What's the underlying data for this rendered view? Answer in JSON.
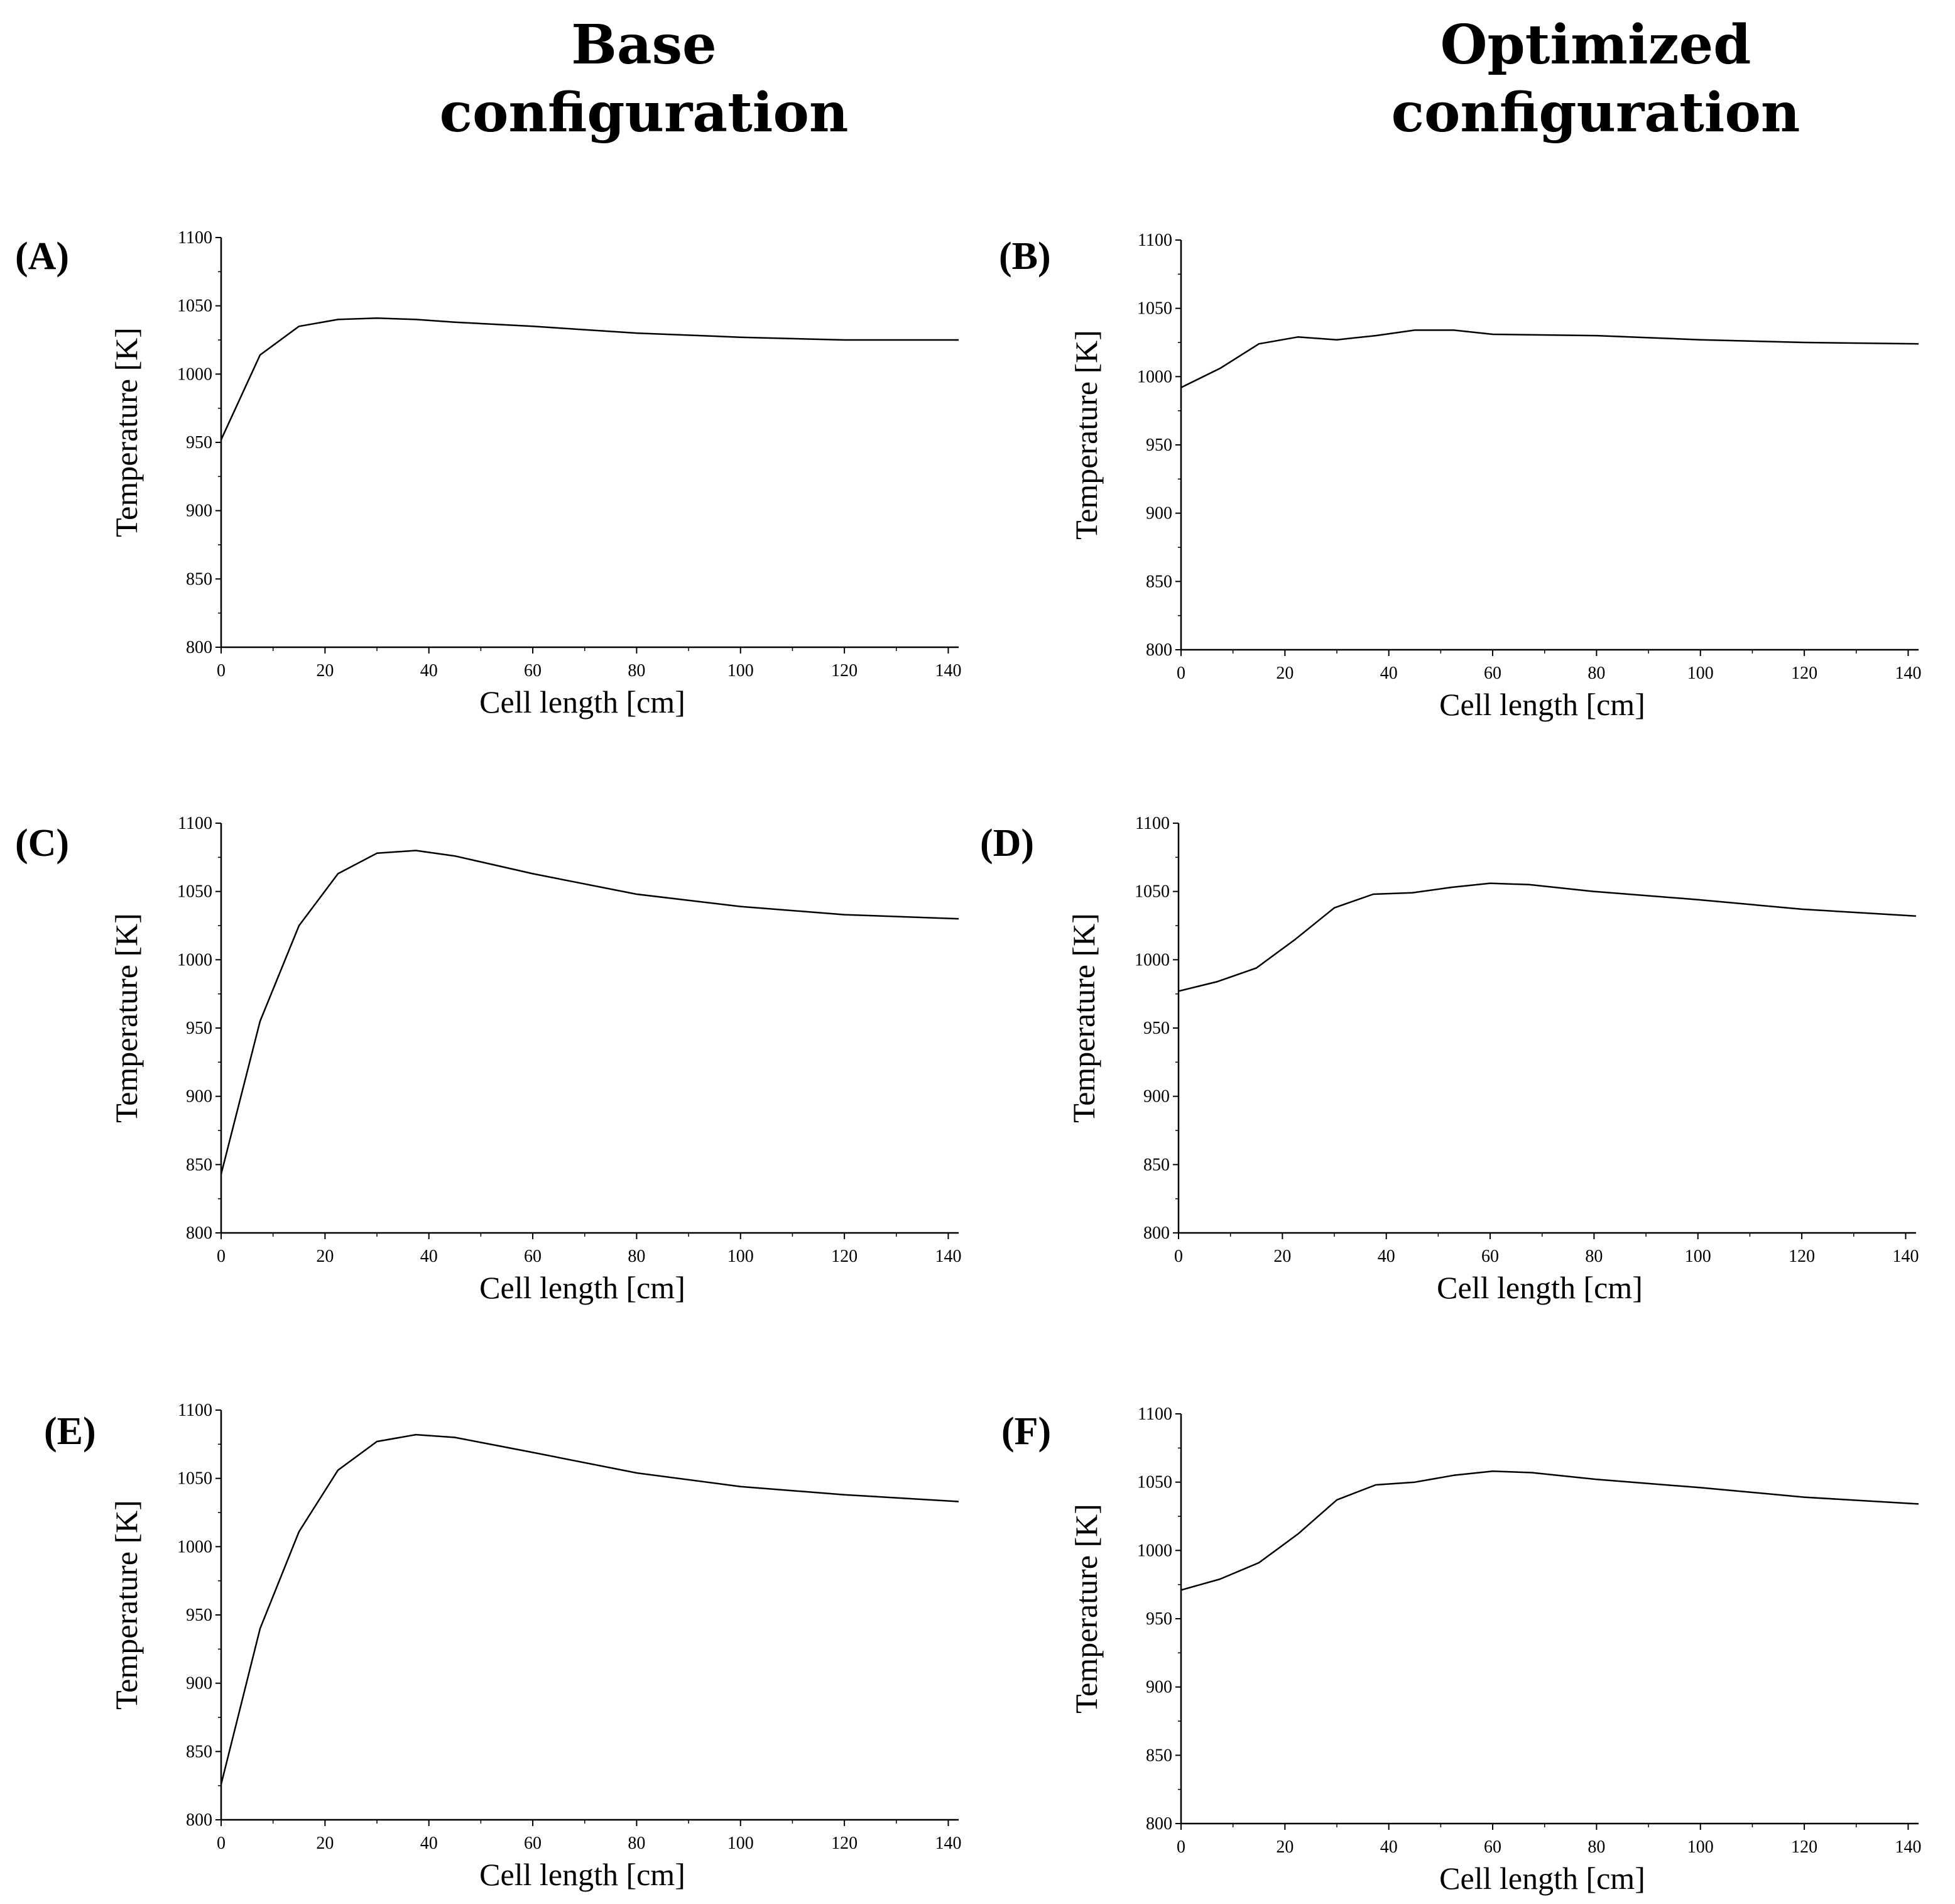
{
  "headers": {
    "left": [
      "Base",
      "configuration"
    ],
    "right": [
      "Optimized",
      "configuration"
    ]
  },
  "chart_data": [
    {
      "type": "line",
      "panel": "(A)",
      "configuration": "Base configuration",
      "xlabel": "Cell length [cm]",
      "ylabel": "Temperature [K]",
      "xlim": [
        0,
        142
      ],
      "ylim": [
        800,
        1100
      ],
      "xticks": [
        0,
        20,
        40,
        60,
        80,
        100,
        120,
        140
      ],
      "yticks": [
        800,
        850,
        900,
        950,
        1000,
        1050,
        1100
      ],
      "x": [
        0,
        7.5,
        15,
        22.5,
        30,
        37.5,
        45,
        60,
        80,
        100,
        120,
        142
      ],
      "y": [
        952,
        1014,
        1035,
        1040,
        1041,
        1040,
        1038,
        1035,
        1030,
        1027,
        1025,
        1025
      ]
    },
    {
      "type": "line",
      "panel": "(B)",
      "configuration": "Optimized configuration",
      "xlabel": "Cell length [cm]",
      "ylabel": "Temperature [K]",
      "xlim": [
        0,
        142
      ],
      "ylim": [
        800,
        1100
      ],
      "xticks": [
        0,
        20,
        40,
        60,
        80,
        100,
        120,
        140
      ],
      "yticks": [
        800,
        850,
        900,
        950,
        1000,
        1050,
        1100
      ],
      "x": [
        0,
        7.5,
        15,
        22.5,
        30,
        37.5,
        45,
        52.5,
        60,
        80,
        100,
        120,
        142
      ],
      "y": [
        992,
        1006,
        1024,
        1029,
        1027,
        1030,
        1034,
        1034,
        1031,
        1030,
        1027,
        1025,
        1024
      ]
    },
    {
      "type": "line",
      "panel": "(C)",
      "configuration": "Base configuration",
      "xlabel": "Cell length [cm]",
      "ylabel": "Temperature [K]",
      "xlim": [
        0,
        142
      ],
      "ylim": [
        800,
        1100
      ],
      "xticks": [
        0,
        20,
        40,
        60,
        80,
        100,
        120,
        140
      ],
      "yticks": [
        800,
        850,
        900,
        950,
        1000,
        1050,
        1100
      ],
      "x": [
        0,
        7.5,
        15,
        22.5,
        30,
        37.5,
        45,
        60,
        80,
        100,
        120,
        142
      ],
      "y": [
        843,
        955,
        1025,
        1063,
        1078,
        1080,
        1076,
        1063,
        1048,
        1039,
        1033,
        1030
      ]
    },
    {
      "type": "line",
      "panel": "(D)",
      "configuration": "Optimized configuration",
      "xlabel": "Cell length [cm]",
      "ylabel": "Temperature [K]",
      "xlim": [
        0,
        142
      ],
      "ylim": [
        800,
        1100
      ],
      "xticks": [
        0,
        20,
        40,
        60,
        80,
        100,
        120,
        140
      ],
      "yticks": [
        800,
        850,
        900,
        950,
        1000,
        1050,
        1100
      ],
      "x": [
        0,
        7.5,
        15,
        22.5,
        30,
        37.5,
        45,
        52.5,
        60,
        67.5,
        80,
        100,
        120,
        142
      ],
      "y": [
        977,
        984,
        994,
        1015,
        1038,
        1048,
        1049,
        1053,
        1056,
        1055,
        1050,
        1044,
        1037,
        1032
      ]
    },
    {
      "type": "line",
      "panel": "(E)",
      "configuration": "Base configuration",
      "xlabel": "Cell length [cm]",
      "ylabel": "Temperature [K]",
      "xlim": [
        0,
        142
      ],
      "ylim": [
        800,
        1100
      ],
      "xticks": [
        0,
        20,
        40,
        60,
        80,
        100,
        120,
        140
      ],
      "yticks": [
        800,
        850,
        900,
        950,
        1000,
        1050,
        1100
      ],
      "x": [
        0,
        7.5,
        15,
        22.5,
        30,
        37.5,
        45,
        60,
        80,
        100,
        120,
        142
      ],
      "y": [
        826,
        940,
        1011,
        1056,
        1077,
        1082,
        1080,
        1069,
        1054,
        1044,
        1038,
        1033
      ]
    },
    {
      "type": "line",
      "panel": "(F)",
      "configuration": "Optimized configuration",
      "xlabel": "Cell length [cm]",
      "ylabel": "Temperature [K]",
      "xlim": [
        0,
        142
      ],
      "ylim": [
        800,
        1100
      ],
      "xticks": [
        0,
        20,
        40,
        60,
        80,
        100,
        120,
        140
      ],
      "yticks": [
        800,
        850,
        900,
        950,
        1000,
        1050,
        1100
      ],
      "x": [
        0,
        7.5,
        15,
        22.5,
        30,
        37.5,
        45,
        52.5,
        60,
        67.5,
        80,
        100,
        120,
        142
      ],
      "y": [
        971,
        979,
        991,
        1012,
        1037,
        1048,
        1050,
        1055,
        1058,
        1057,
        1052,
        1046,
        1039,
        1034
      ]
    }
  ]
}
